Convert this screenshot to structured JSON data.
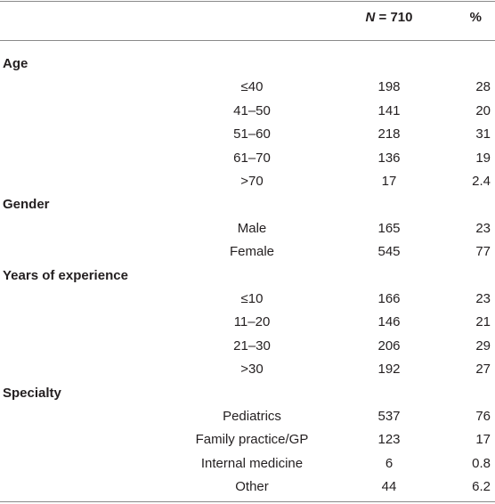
{
  "header": {
    "n_symbol": "N",
    "n_value": "= 710",
    "pct": "%"
  },
  "sections": [
    {
      "title": "Age",
      "rows": [
        [
          "≤40",
          198,
          28
        ],
        [
          "41–50",
          141,
          20
        ],
        [
          "51–60",
          218,
          31
        ],
        [
          "61–70",
          136,
          19
        ],
        [
          ">70",
          17,
          2.4
        ]
      ]
    },
    {
      "title": "Gender",
      "rows": [
        [
          "Male",
          165,
          23
        ],
        [
          "Female",
          545,
          77
        ]
      ]
    },
    {
      "title": "Years of experience",
      "rows": [
        [
          "≤10",
          166,
          23
        ],
        [
          "11–20",
          146,
          21
        ],
        [
          "21–30",
          206,
          29
        ],
        [
          ">30",
          192,
          27
        ]
      ]
    },
    {
      "title": "Specialty",
      "rows": [
        [
          "Pediatrics",
          537,
          76
        ],
        [
          "Family practice/GP",
          123,
          17
        ],
        [
          "Internal medicine",
          6,
          0.8
        ],
        [
          "Other",
          44,
          6.2
        ]
      ]
    }
  ]
}
